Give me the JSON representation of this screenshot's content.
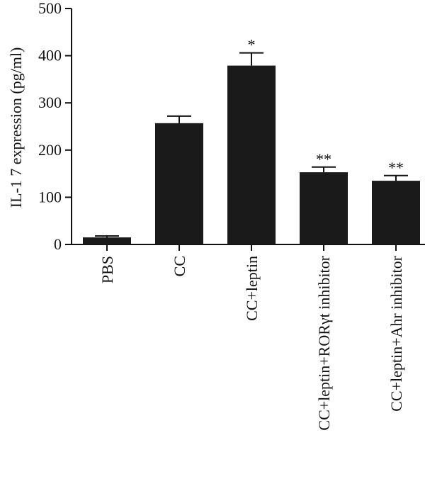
{
  "chart_data": {
    "type": "bar",
    "title": "",
    "xlabel": "",
    "ylabel": "IL-1 7 expression (pg/ml)",
    "ylim": [
      0,
      500
    ],
    "yticks": [
      0,
      100,
      200,
      300,
      400,
      500
    ],
    "grid": false,
    "categories": [
      "PBS",
      "CC",
      "CC+leptin",
      "CC+leptin+RORγt inhibitor",
      "CC+leptin+Ahr inhibitor"
    ],
    "values": [
      15,
      257,
      379,
      153,
      135
    ],
    "errors": [
      3,
      15,
      27,
      11,
      11
    ],
    "annotations": [
      "",
      "",
      "*",
      "**",
      "**"
    ],
    "bar_color": "#1a1a1a"
  }
}
